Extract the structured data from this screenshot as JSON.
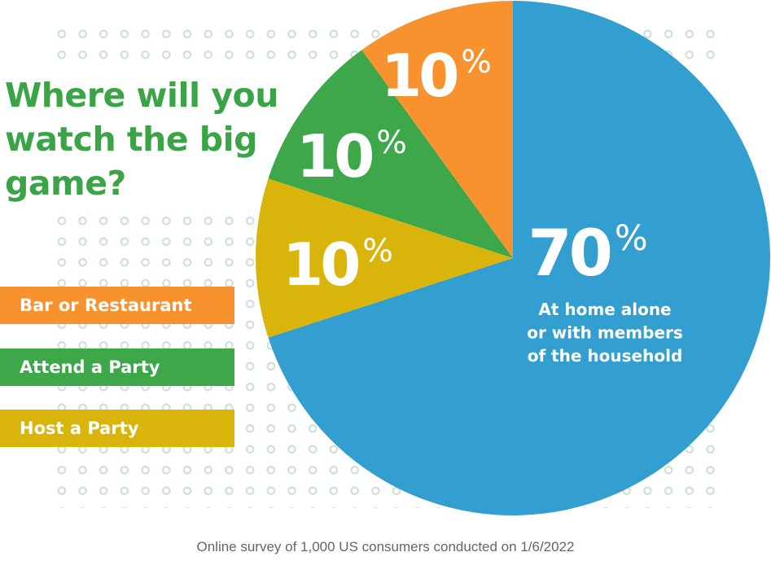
{
  "chart_data": {
    "type": "pie",
    "title": "Where will you watch the big game?",
    "slices": [
      {
        "label": "At home alone or with members of the household",
        "value": 70,
        "display": "70%",
        "color": "#339fd0"
      },
      {
        "label": "Host a Party",
        "value": 10,
        "display": "10%",
        "color": "#d9b50c"
      },
      {
        "label": "Attend a Party",
        "value": 10,
        "display": "10%",
        "color": "#3da74a"
      },
      {
        "label": "Bar or Restaurant",
        "value": 10,
        "display": "10%",
        "color": "#f7922e"
      }
    ],
    "inner_label_lines": [
      "At home alone",
      "or with members",
      "of the household"
    ],
    "legend": [
      {
        "label": "Bar or Restaurant",
        "color": "#f7922e"
      },
      {
        "label": "Attend a Party",
        "color": "#3da74a"
      },
      {
        "label": "Host a Party",
        "color": "#d9b50c"
      }
    ],
    "legend_placement": "left",
    "footnote": "Online survey of 1,000 US consumers conducted on 1/6/2022"
  }
}
